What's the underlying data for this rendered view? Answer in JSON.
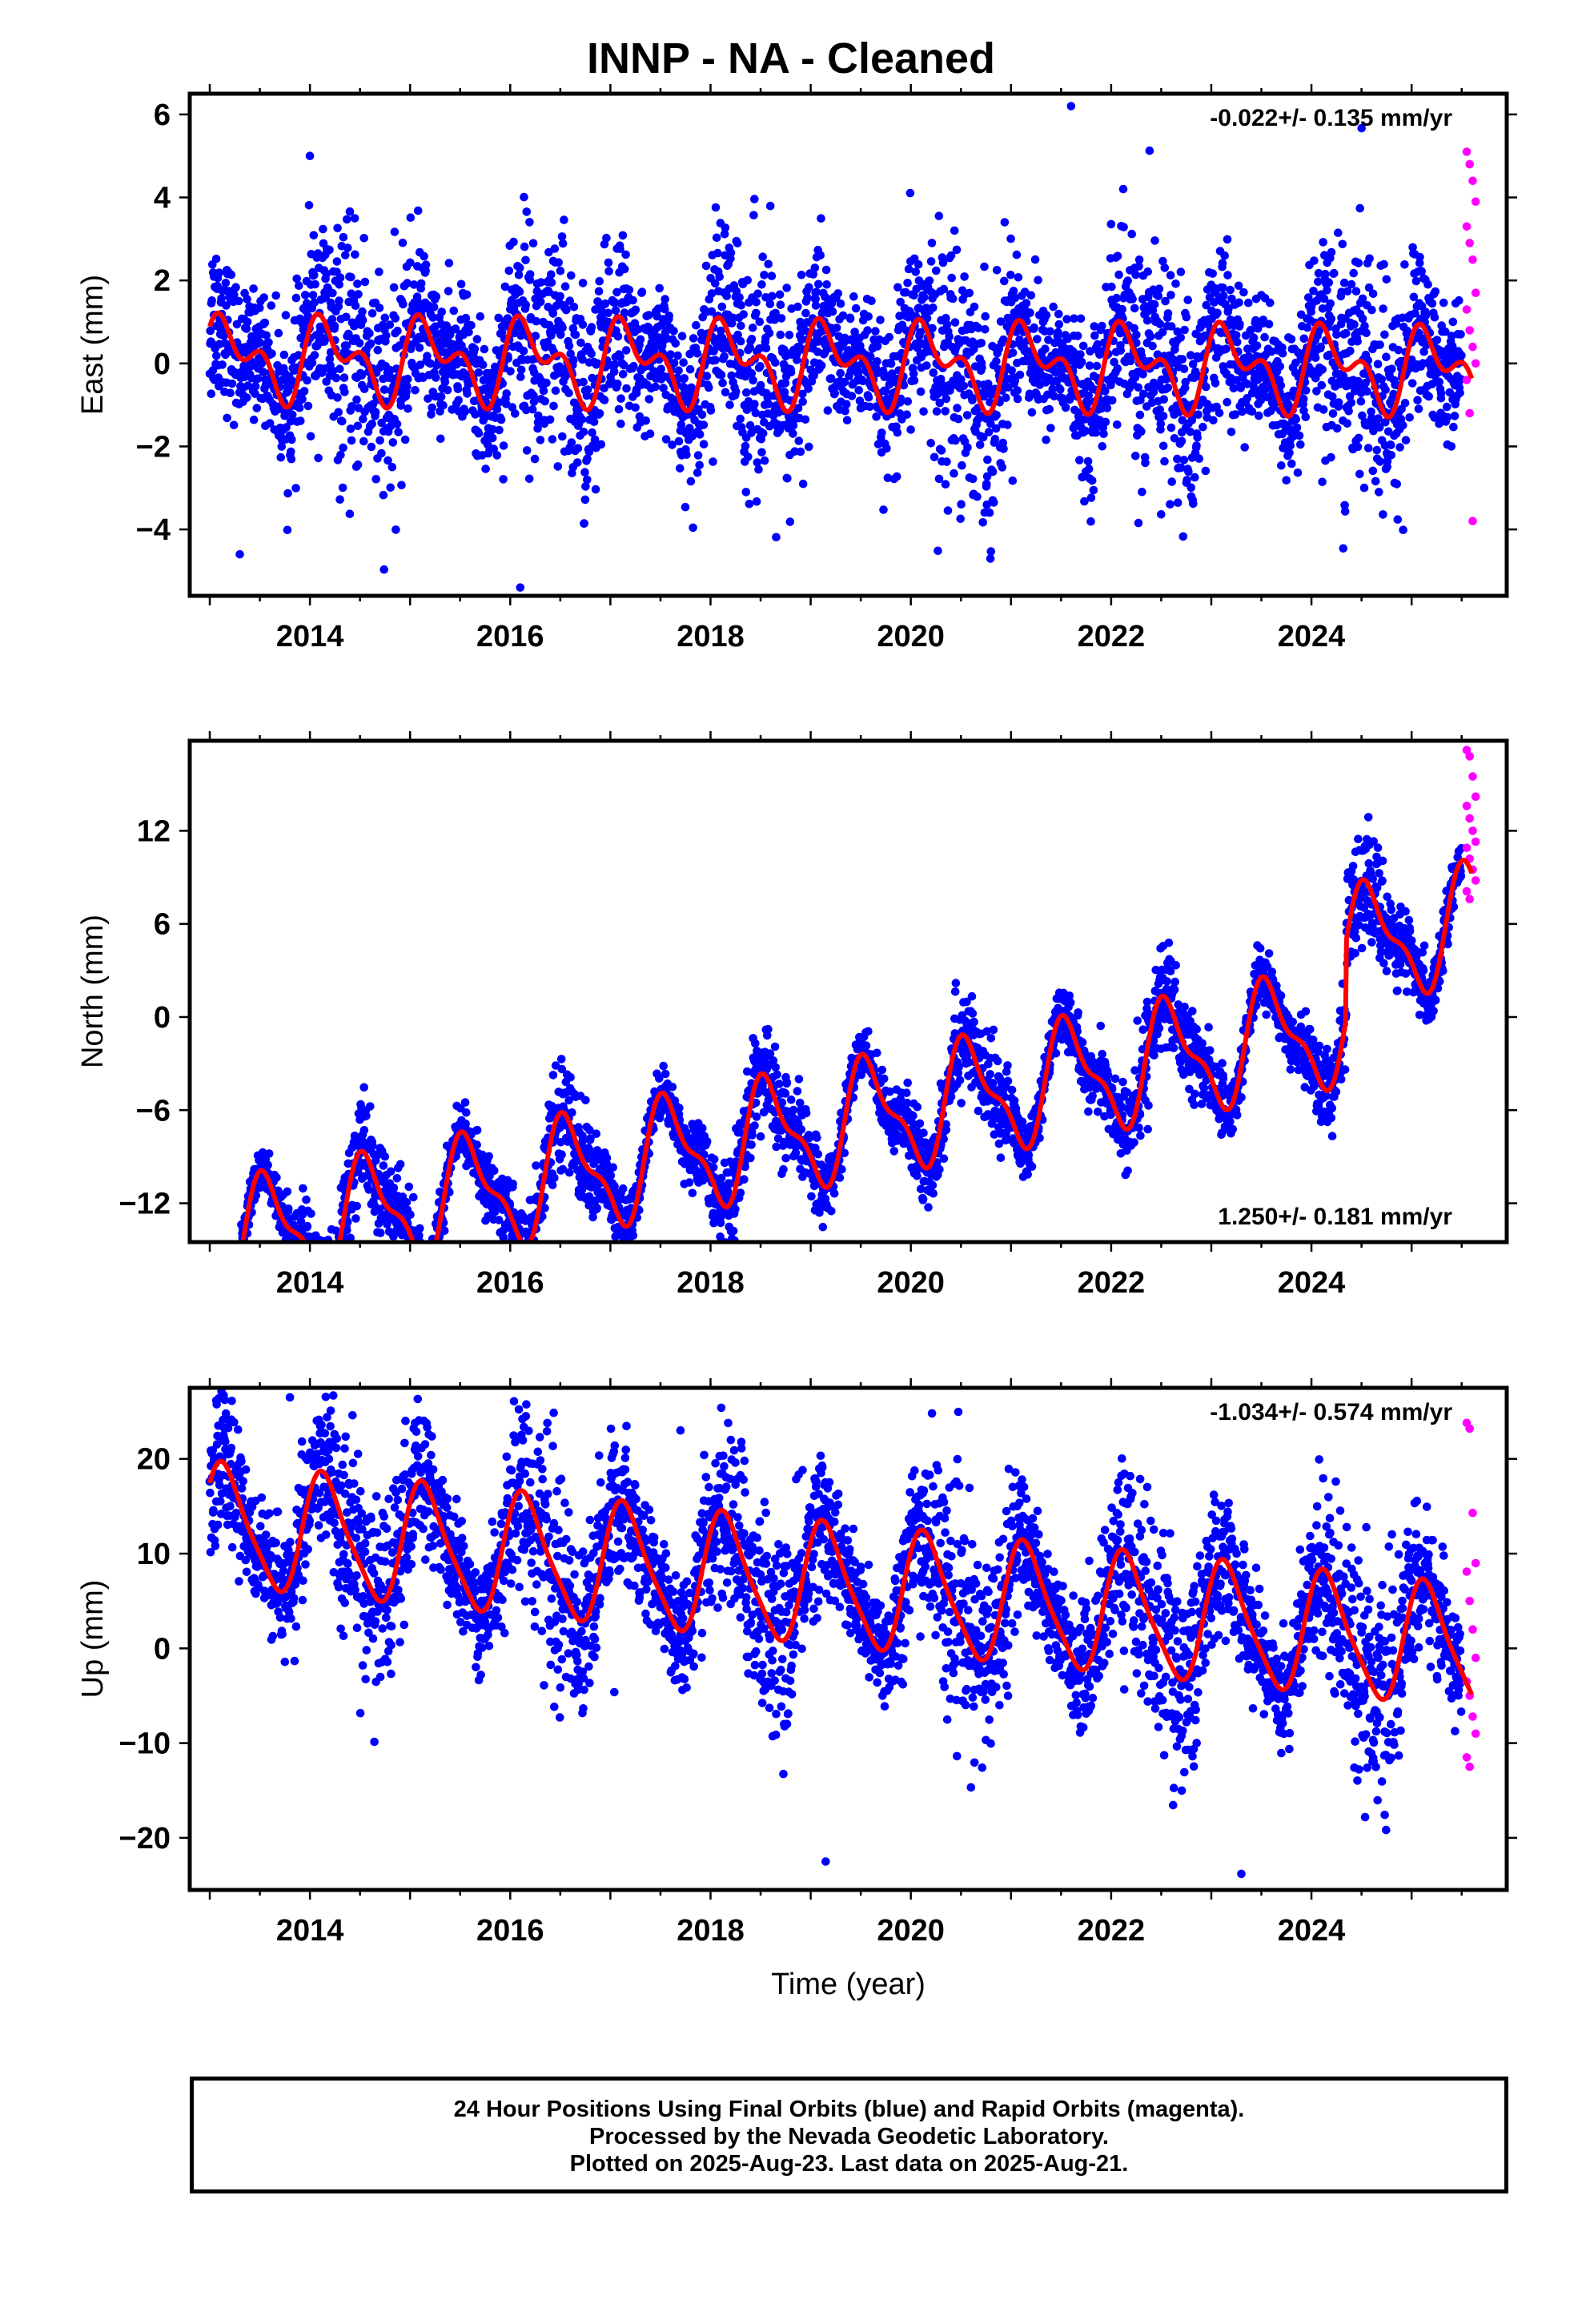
{
  "title": "INNP  - NA - Cleaned",
  "footer": {
    "line1": "24 Hour Positions Using Final Orbits (blue) and Rapid Orbits (magenta).",
    "line2": "Processed by the Nevada Geodetic Laboratory.",
    "line3": "Plotted on 2025-Aug-23. Last data on 2025-Aug-21."
  },
  "colors": {
    "final": "#0000ff",
    "rapid": "#ff00ff",
    "model": "#ff0000",
    "frame": "#000000"
  },
  "chart_data": [
    {
      "type": "scatter",
      "name": "east",
      "ylabel": "East (mm)",
      "xlabel": "",
      "rate_label": "-0.022+/- 0.135 mm/yr",
      "rate_position": "top-right",
      "xlim": [
        2012.8,
        2025.95
      ],
      "ylim": [
        -5.6,
        6.5
      ],
      "xticks": [
        2014,
        2016,
        2018,
        2020,
        2022,
        2024
      ],
      "xtick_labels": [
        "2014",
        "2016",
        "2018",
        "2020",
        "2022",
        "2024"
      ],
      "yticks": [
        -4,
        -2,
        0,
        2,
        4,
        6
      ],
      "ytick_labels": [
        "−4",
        "−2",
        "0",
        "2",
        "4",
        "6"
      ],
      "series": [
        {
          "role": "final",
          "x_range": [
            2013.0,
            2025.5
          ],
          "points_per_year": 300,
          "model": {
            "trend": -0.022,
            "offset": 0.0,
            "annual_amp": 0.75,
            "annual_phase": 0.4,
            "semi_amp": 0.55,
            "semi_phase": 1.0
          },
          "scatter": 1.1,
          "outliers": [
            [
              2021.6,
              6.2
            ],
            [
              2014.0,
              5.0
            ],
            [
              2016.1,
              -5.4
            ],
            [
              2013.3,
              -4.6
            ]
          ]
        },
        {
          "role": "rapid",
          "x_range": [
            2025.55,
            2025.64
          ],
          "values": [
            5.1,
            4.8,
            4.4,
            3.9,
            3.3,
            2.9,
            2.5,
            1.7,
            1.3,
            0.8,
            0.4,
            0.0,
            -0.4,
            -1.2,
            -3.8
          ]
        },
        {
          "role": "model",
          "x_range": [
            2013.0,
            2025.6
          ]
        }
      ]
    },
    {
      "type": "scatter",
      "name": "north",
      "ylabel": "North (mm)",
      "xlabel": "",
      "rate_label": "1.250+/- 0.181 mm/yr",
      "rate_position": "bottom-right",
      "xlim": [
        2012.8,
        2025.95
      ],
      "ylim": [
        -14.5,
        17.8
      ],
      "xticks": [
        2014,
        2016,
        2018,
        2020,
        2022,
        2024
      ],
      "xtick_labels": [
        "2014",
        "2016",
        "2018",
        "2020",
        "2022",
        "2024"
      ],
      "yticks": [
        -12,
        -6,
        0,
        6,
        12
      ],
      "ytick_labels": [
        "−12",
        "−6",
        "0",
        "6",
        "12"
      ],
      "series": [
        {
          "role": "final",
          "x_range": [
            2013.0,
            2025.5
          ],
          "points_per_year": 300,
          "model": {
            "trend": 1.25,
            "offset": -7.2,
            "annual_amp": 3.4,
            "annual_phase": 4.2,
            "semi_amp": 1.3,
            "semi_phase": 2.0
          },
          "scatter": 1.2,
          "step": {
            "at": 2024.35,
            "size": 5.0
          },
          "outliers": [
            [
              2019.95,
              -7.5
            ],
            [
              2018.9,
              -6.0
            ]
          ]
        },
        {
          "role": "rapid",
          "x_range": [
            2025.55,
            2025.64
          ],
          "values": [
            17.2,
            16.8,
            15.5,
            14.2,
            13.6,
            12.8,
            12.0,
            11.3,
            10.9,
            10.2,
            9.5,
            8.8,
            8.1,
            7.6
          ]
        },
        {
          "role": "model",
          "x_range": [
            2013.0,
            2025.6
          ]
        }
      ]
    },
    {
      "type": "scatter",
      "name": "up",
      "ylabel": "Up (mm)",
      "xlabel": "Time (year)",
      "rate_label": "-1.034+/- 0.574 mm/yr",
      "rate_position": "top-right",
      "xlim": [
        2012.8,
        2025.95
      ],
      "ylim": [
        -25.5,
        27.5
      ],
      "xticks": [
        2014,
        2016,
        2018,
        2020,
        2022,
        2024
      ],
      "xtick_labels": [
        "2014",
        "2016",
        "2018",
        "2020",
        "2022",
        "2024"
      ],
      "yticks": [
        -20,
        -10,
        0,
        10,
        20
      ],
      "ytick_labels": [
        "−20",
        "−10",
        "0",
        "10",
        "20"
      ],
      "series": [
        {
          "role": "final",
          "x_range": [
            2013.0,
            2025.5
          ],
          "points_per_year": 300,
          "model": {
            "trend": -1.034,
            "offset": 6.8,
            "annual_amp": 6.2,
            "annual_phase": 0.6,
            "semi_amp": 1.2,
            "semi_phase": 0.9
          },
          "scatter": 4.2,
          "outliers": [
            [
              2013.8,
              26.5
            ],
            [
              2017.7,
              23.0
            ],
            [
              2019.15,
              -22.5
            ],
            [
              2023.3,
              -23.8
            ]
          ]
        },
        {
          "role": "rapid",
          "x_range": [
            2025.55,
            2025.64
          ],
          "values": [
            23.8,
            23.2,
            14.3,
            9.0,
            8.1,
            5.0,
            2.0,
            -1.0,
            -3.5,
            -5.0,
            -7.2,
            -9.0,
            -11.5,
            -12.5
          ]
        },
        {
          "role": "model",
          "x_range": [
            2013.0,
            2025.6
          ]
        }
      ]
    }
  ]
}
